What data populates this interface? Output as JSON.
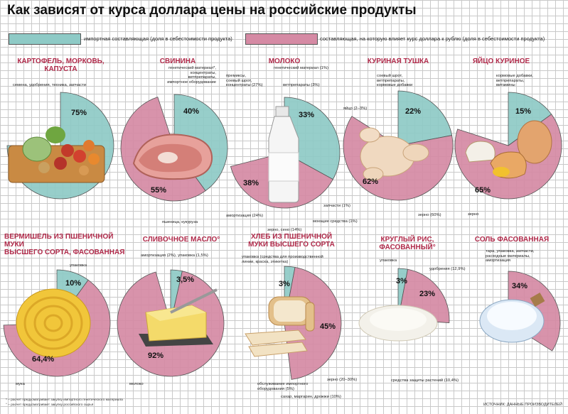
{
  "title": "Как зависят от курса доллара цены на российские продукты",
  "legend": {
    "import": "импортная составляющая (доля в себестоимости продукта)",
    "ruble": "составляющая, на которую влияет курс доллара к рублю (доля в себестоимости продукта)"
  },
  "colors": {
    "import": "#8ecac6",
    "ruble": "#d58aa4",
    "title": "#b02a4a",
    "grid": "#c9c9c9"
  },
  "panels": [
    {
      "name": "Картофель, морковь, капуста",
      "title": "КАРТОФЕЛЬ, МОРКОВЬ,\nКАПУСТА",
      "import_pct": "75%",
      "ruble_pct": "",
      "labels": [
        "семена, удобрения, техника, запчасти"
      ],
      "food_icon": "vegetables-icon"
    },
    {
      "name": "Свинина",
      "title": "СВИНИНА",
      "import_pct": "40%",
      "ruble_pct": "55%",
      "labels": [
        "генетический материал*,\nконцентраты,\nветпрепараты,\nимпортное оборудование",
        "пшеница, кукуруза"
      ],
      "food_icon": "pork-icon"
    },
    {
      "name": "Молоко",
      "title": "МОЛОКО",
      "import_pct": "33%",
      "ruble_pct": "38%",
      "labels": [
        "генетический материал (1%)",
        "премиксы,\nсоевый шрот,\nконцентраты (27%)",
        "ветпрепараты (3%)",
        "запчасти (1%)",
        "моющие средства (1%)",
        "амортизация (24%)",
        "зерно, сено (14%)"
      ],
      "food_icon": "milk-bottle-icon"
    },
    {
      "name": "Куриная тушка",
      "title": "КУРИНАЯ ТУШКА",
      "import_pct": "22%",
      "ruble_pct": "62%",
      "labels": [
        "соевый шрот,\nветпрепараты,\nкормовые добавки",
        "яйцо (2–3%)",
        "зерно (60%)"
      ],
      "food_icon": "chicken-icon"
    },
    {
      "name": "Яйцо куриное",
      "title": "ЯЙЦО КУРИНОЕ",
      "import_pct": "15%",
      "ruble_pct": "65%",
      "labels": [
        "кормовые добавки,\nветпрепараты,\nвитамины",
        "зерно"
      ],
      "food_icon": "egg-icon"
    },
    {
      "name": "Вермишель",
      "title": "ВЕРМИШЕЛЬ ИЗ ПШЕНИЧНОЙ МУКИ\nВЫСШЕГО СОРТА, ФАСОВАННАЯ",
      "import_pct": "10%",
      "ruble_pct": "64,4%",
      "labels": [
        "упаковка",
        "мука"
      ],
      "food_icon": "pasta-icon"
    },
    {
      "name": "Сливочное масло",
      "title": "СЛИВОЧНОЕ МАСЛО°",
      "import_pct": "3,5%",
      "ruble_pct": "92%",
      "labels": [
        "амортизация (2%), упаковка (1,5%)",
        "молоко"
      ],
      "food_icon": "butter-icon"
    },
    {
      "name": "Хлеб",
      "title": "ХЛЕБ ИЗ ПШЕНИЧНОЙ\nМУКИ ВЫСШЕГО СОРТА",
      "import_pct": "3%",
      "ruble_pct": "45%",
      "labels": [
        "упаковка (средства для производственной\nлинии, краска, этикетка)",
        "зерно (20–30%)",
        "обслуживание импортного\nоборудования (5%)",
        "сахар, маргарин, дрожжи (10%)"
      ],
      "food_icon": "bread-icon"
    },
    {
      "name": "Круглый рис",
      "title": "КРУГЛЫЙ РИС, ФАСОВАННЫЙ°",
      "import_pct": "3%",
      "ruble_pct": "23%",
      "labels": [
        "упаковка",
        "удобрения (12,9%)",
        "средства защиты растений (10,4%)"
      ],
      "food_icon": "rice-icon"
    },
    {
      "name": "Соль фасованная",
      "title": "СОЛЬ ФАСОВАННАЯ",
      "import_pct": "",
      "ruble_pct": "34%",
      "labels": [
        "тара, упаковка, запчасти,\nрасходные материалы,\nамортизация"
      ],
      "food_icon": "salt-icon"
    }
  ],
  "footnotes": [
    "* – расчет предусматривает закупку импортного генетического материала",
    "° – расчет предусматривает закупку российского сырья"
  ],
  "source": "ИСТОЧНИК: ДАННЫЕ ПРОИЗВОДИТЕЛЕЙ"
}
